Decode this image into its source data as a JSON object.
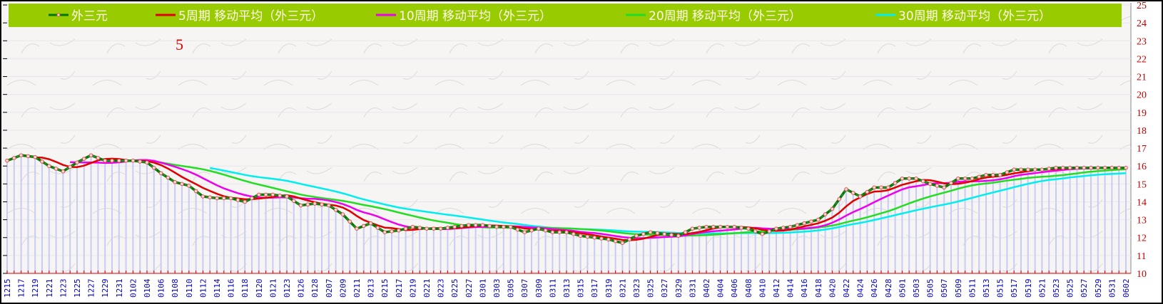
{
  "chart_data": {
    "type": "line",
    "title": "",
    "xlabel": "",
    "ylabel": "",
    "ylim": [
      10,
      25
    ],
    "yticks": [
      10,
      11,
      12,
      13,
      14,
      15,
      16,
      17,
      18,
      19,
      20,
      21,
      22,
      23,
      24,
      25
    ],
    "annotation": "5",
    "legend_position": "top",
    "x": [
      "1215",
      "1217",
      "1219",
      "1221",
      "1223",
      "1225",
      "1227",
      "1229",
      "1231",
      "0102",
      "0104",
      "0106",
      "0108",
      "0110",
      "0112",
      "0114",
      "0116",
      "0118",
      "0120",
      "0121",
      "0123",
      "0126",
      "0128",
      "0207",
      "0209",
      "0211",
      "0213",
      "0215",
      "0217",
      "0219",
      "0221",
      "0223",
      "0225",
      "0227",
      "0301",
      "0303",
      "0305",
      "0307",
      "0309",
      "0311",
      "0313",
      "0315",
      "0317",
      "0319",
      "0321",
      "0323",
      "0325",
      "0327",
      "0329",
      "0331",
      "0402",
      "0404",
      "0406",
      "0408",
      "0410",
      "0412",
      "0414",
      "0416",
      "0418",
      "0420",
      "0422",
      "0424",
      "0426",
      "0428",
      "0501",
      "0503",
      "0505",
      "0507",
      "0509",
      "0511",
      "0513",
      "0515",
      "0517",
      "0519",
      "0521",
      "0523",
      "0525",
      "0527",
      "0529",
      "0531",
      "0602"
    ],
    "series": [
      {
        "name": "外三元",
        "color": "#007700",
        "values": [
          16.3,
          16.6,
          16.5,
          16.0,
          15.7,
          16.2,
          16.6,
          16.3,
          16.3,
          16.3,
          16.2,
          15.6,
          15.1,
          14.9,
          14.3,
          14.2,
          14.2,
          14.0,
          14.4,
          14.4,
          14.3,
          13.8,
          13.9,
          13.8,
          13.3,
          12.5,
          12.8,
          12.3,
          12.4,
          12.6,
          12.5,
          12.5,
          12.6,
          12.7,
          12.7,
          12.6,
          12.6,
          12.3,
          12.5,
          12.3,
          12.3,
          12.1,
          12.0,
          11.9,
          11.7,
          12.1,
          12.3,
          12.2,
          12.1,
          12.5,
          12.6,
          12.6,
          12.6,
          12.5,
          12.2,
          12.5,
          12.6,
          12.8,
          13.0,
          13.6,
          14.7,
          14.3,
          14.8,
          14.8,
          15.3,
          15.3,
          15.0,
          14.8,
          15.3,
          15.3,
          15.5,
          15.5,
          15.8,
          15.8,
          15.8,
          15.9,
          15.9,
          15.9,
          15.9,
          15.9,
          15.9
        ]
      },
      {
        "name": "5周期 移动平均（外三元）",
        "color": "#e00000",
        "period": 5
      },
      {
        "name": "10周期 移动平均（外三元）",
        "color": "#ee00ee",
        "period": 10
      },
      {
        "name": "20周期 移动平均（外三元）",
        "color": "#22dd22",
        "period": 20
      },
      {
        "name": "30周期 移动平均（外三元）",
        "color": "#00eeee",
        "period": 30
      }
    ]
  },
  "colors": {
    "legend_bg": "#99cc00",
    "bars": "#c8ccf4",
    "axis_ticks": "#e00000"
  }
}
